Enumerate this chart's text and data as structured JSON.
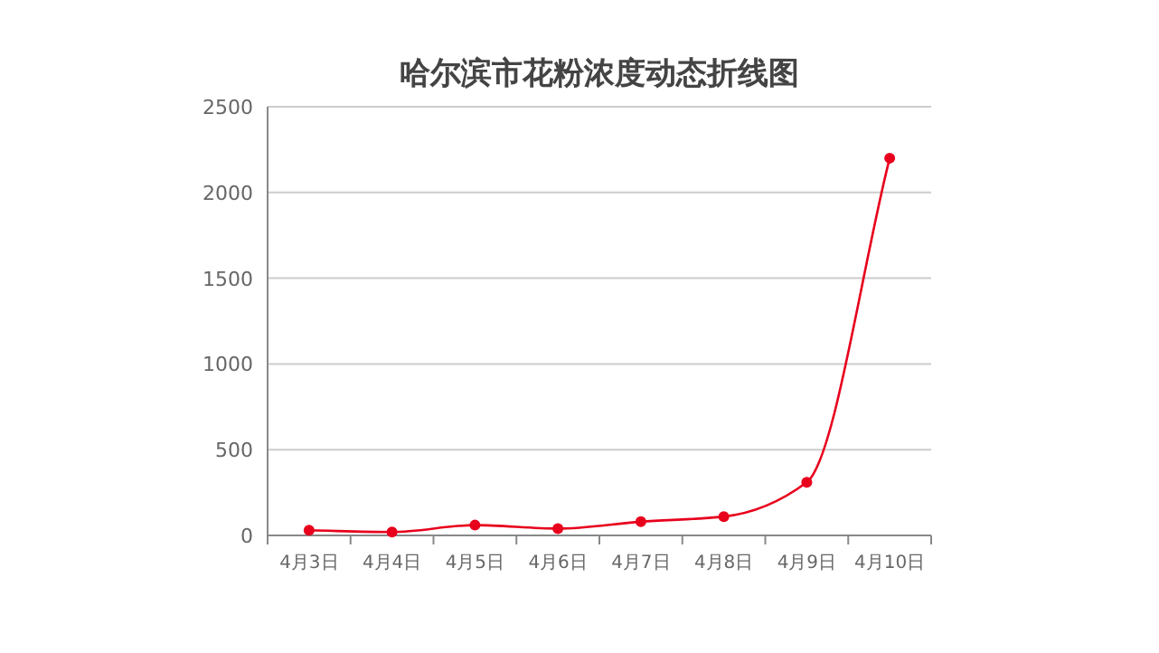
{
  "chart_data": {
    "type": "line",
    "title": "哈尔滨市花粉浓度动态折线图",
    "categories": [
      "4月3日",
      "4月4日",
      "4月5日",
      "4月6日",
      "4月7日",
      "4月8日",
      "4月9日",
      "4月10日"
    ],
    "series": [
      {
        "color": "#e8001c",
        "values": [
          30,
          20,
          60,
          40,
          80,
          110,
          310,
          2200
        ]
      }
    ],
    "ylim": [
      0,
      2500
    ],
    "yticks": [
      0,
      500,
      1000,
      1500,
      2000,
      2500
    ],
    "grid": "y",
    "marker": "circle",
    "line_style": "solid"
  }
}
